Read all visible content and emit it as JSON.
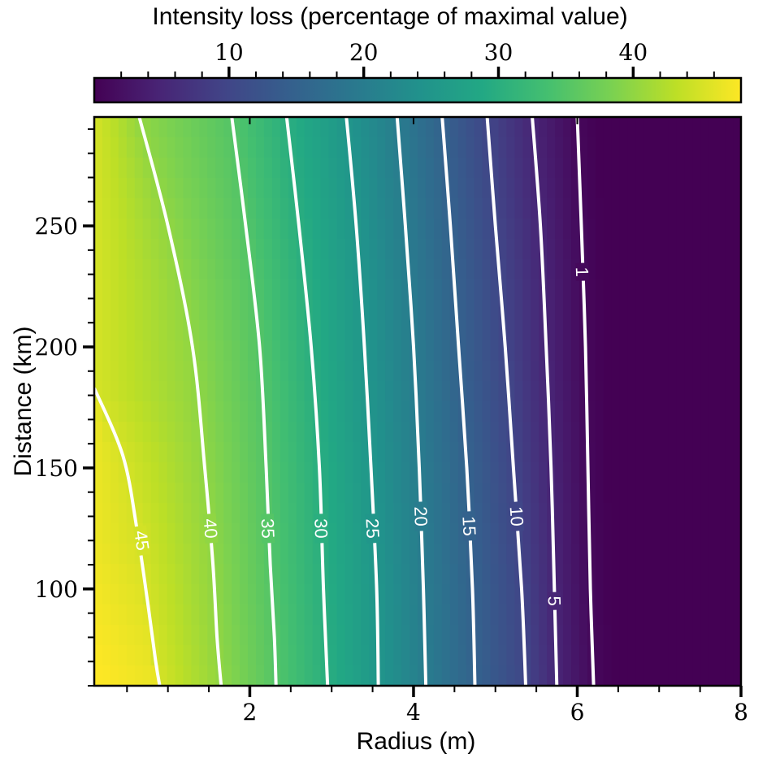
{
  "chart_data": {
    "type": "heatmap",
    "subtype": "filled-contour-with-isolines",
    "title": "",
    "xlabel": "Radius (m)",
    "ylabel": "Distance (km)",
    "xlim": [
      0.1,
      8
    ],
    "ylim": [
      60,
      295
    ],
    "x_ticks": [
      2,
      4,
      6,
      8
    ],
    "y_ticks": [
      100,
      150,
      200,
      250
    ],
    "colormap": "viridis",
    "colorbar": {
      "label": "Intensity loss (percentage of maximal value)",
      "position": "top",
      "range": [
        0,
        48
      ],
      "ticks": [
        10,
        20,
        30,
        40
      ]
    },
    "contours": [
      {
        "level": 45,
        "label": "45",
        "points": [
          [
            0.1,
            183
          ],
          [
            0.45,
            155
          ],
          [
            0.62,
            125
          ],
          [
            0.75,
            95
          ],
          [
            0.85,
            70
          ],
          [
            0.9,
            60
          ]
        ]
      },
      {
        "level": 40,
        "label": "40",
        "points": [
          [
            0.65,
            295
          ],
          [
            1.0,
            250
          ],
          [
            1.3,
            200
          ],
          [
            1.45,
            150
          ],
          [
            1.55,
            110
          ],
          [
            1.6,
            80
          ],
          [
            1.65,
            60
          ]
        ]
      },
      {
        "level": 35,
        "label": "35",
        "points": [
          [
            1.78,
            295
          ],
          [
            1.95,
            250
          ],
          [
            2.12,
            200
          ],
          [
            2.2,
            150
          ],
          [
            2.25,
            110
          ],
          [
            2.3,
            80
          ],
          [
            2.32,
            60
          ]
        ]
      },
      {
        "level": 30,
        "label": "30",
        "points": [
          [
            2.45,
            295
          ],
          [
            2.6,
            250
          ],
          [
            2.75,
            200
          ],
          [
            2.85,
            150
          ],
          [
            2.9,
            100
          ],
          [
            2.95,
            60
          ]
        ]
      },
      {
        "level": 25,
        "label": "25",
        "points": [
          [
            3.18,
            295
          ],
          [
            3.3,
            250
          ],
          [
            3.4,
            200
          ],
          [
            3.48,
            150
          ],
          [
            3.55,
            100
          ],
          [
            3.57,
            60
          ]
        ]
      },
      {
        "level": 20,
        "label": "20",
        "points": [
          [
            3.8,
            295
          ],
          [
            3.9,
            250
          ],
          [
            4.0,
            200
          ],
          [
            4.07,
            150
          ],
          [
            4.12,
            100
          ],
          [
            4.15,
            60
          ]
        ]
      },
      {
        "level": 15,
        "label": "15",
        "points": [
          [
            4.35,
            295
          ],
          [
            4.45,
            250
          ],
          [
            4.55,
            200
          ],
          [
            4.65,
            150
          ],
          [
            4.72,
            100
          ],
          [
            4.75,
            60
          ]
        ]
      },
      {
        "level": 10,
        "label": "10",
        "points": [
          [
            4.9,
            295
          ],
          [
            5.0,
            250
          ],
          [
            5.12,
            200
          ],
          [
            5.22,
            150
          ],
          [
            5.32,
            100
          ],
          [
            5.37,
            60
          ]
        ]
      },
      {
        "level": 5,
        "label": "5",
        "points": [
          [
            5.45,
            295
          ],
          [
            5.55,
            250
          ],
          [
            5.62,
            200
          ],
          [
            5.68,
            150
          ],
          [
            5.72,
            100
          ],
          [
            5.75,
            60
          ]
        ]
      },
      {
        "level": 1,
        "label": "1",
        "points": [
          [
            6.0,
            295
          ],
          [
            6.05,
            250
          ],
          [
            6.1,
            200
          ],
          [
            6.13,
            150
          ],
          [
            6.16,
            100
          ],
          [
            6.2,
            60
          ]
        ]
      }
    ],
    "contour_label_positions": [
      {
        "label": "45",
        "at": [
          0.68,
          120
        ]
      },
      {
        "label": "40",
        "at": [
          1.52,
          125
        ]
      },
      {
        "label": "35",
        "at": [
          2.22,
          125
        ]
      },
      {
        "label": "30",
        "at": [
          2.87,
          125
        ]
      },
      {
        "label": "25",
        "at": [
          3.5,
          125
        ]
      },
      {
        "label": "20",
        "at": [
          4.09,
          130
        ]
      },
      {
        "label": "15",
        "at": [
          4.68,
          126
        ]
      },
      {
        "label": "10",
        "at": [
          5.26,
          130
        ]
      },
      {
        "label": "5",
        "at": [
          5.72,
          95
        ]
      },
      {
        "label": "1",
        "at": [
          6.06,
          231
        ]
      }
    ]
  }
}
